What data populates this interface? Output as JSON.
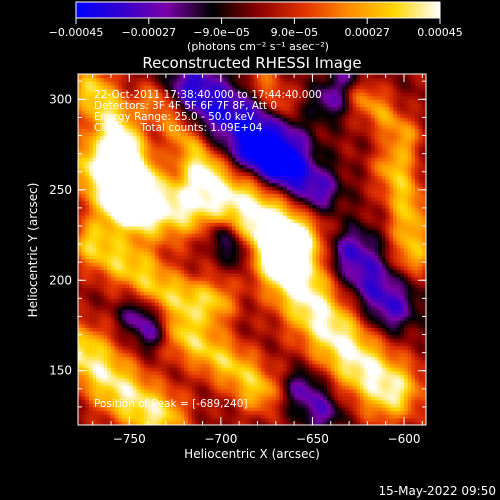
{
  "chart_data": {
    "type": "heatmap",
    "title": "Reconstructed RHESSI Image",
    "xlabel": "Heliocentric X (arcsec)",
    "ylabel": "Heliocentric Y (arcsec)",
    "xlim": [
      -778,
      -588
    ],
    "ylim": [
      120,
      314
    ],
    "x_ticks": [
      -750,
      -700,
      -650,
      -600
    ],
    "x_tick_labels": [
      "−750",
      "−700",
      "−650",
      "−600"
    ],
    "y_ticks": [
      150,
      200,
      250,
      300
    ],
    "y_tick_labels": [
      "150",
      "200",
      "250",
      "300"
    ],
    "colorbar": {
      "range": [
        -0.00045,
        0.00045
      ],
      "ticks": [
        -0.00045,
        -0.00027,
        -9e-05,
        9e-05,
        0.00027,
        0.00045
      ],
      "tick_labels": [
        "−0.00045",
        "−0.00027",
        "−9.0e−05",
        "9.0e−05",
        "0.00027",
        "0.00045"
      ],
      "unit_label": "(photons cm⁻² s⁻¹ asec⁻²)",
      "colors": [
        "#0000ff",
        "#3300cc",
        "#7a00a8",
        "#000000",
        "#8a0000",
        "#e03000",
        "#ff8c00",
        "#ffd700",
        "#ffffff"
      ]
    },
    "annotations": [
      "22-Oct-2011 17:38:40.000 to 17:44:40.000",
      "Detectors: 3F 4F 5F 6F 7F 8F, Att 0",
      "Energy Range: 25.0 - 50.0 keV",
      "Clean     Total counts: 1.09E+04"
    ],
    "peak_label": "Position of Peak = [-689,240]",
    "peak": [
      -689,
      240
    ],
    "grid": false,
    "ridges": [
      {
        "points": [
          [
            -770,
            305
          ],
          [
            -760,
            292
          ],
          [
            -752,
            275
          ],
          [
            -748,
            258
          ],
          [
            -752,
            242
          ]
        ],
        "width": 9,
        "amp": 0.8
      },
      {
        "points": [
          [
            -765,
            262
          ],
          [
            -752,
            250
          ],
          [
            -738,
            240
          ],
          [
            -722,
            242
          ],
          [
            -705,
            246
          ],
          [
            -690,
            244
          ],
          [
            -676,
            235
          ],
          [
            -665,
            222
          ]
        ],
        "width": 13,
        "amp": 1.0
      },
      {
        "points": [
          [
            -770,
            220
          ],
          [
            -758,
            212
          ],
          [
            -745,
            205
          ],
          [
            -732,
            195
          ],
          [
            -718,
            190
          ],
          [
            -705,
            188
          ]
        ],
        "width": 9,
        "amp": 0.75
      },
      {
        "points": [
          [
            -775,
            160
          ],
          [
            -765,
            150
          ],
          [
            -755,
            140
          ],
          [
            -745,
            132
          ],
          [
            -735,
            125
          ]
        ],
        "width": 11,
        "amp": 0.9
      },
      {
        "points": [
          [
            -735,
            300
          ],
          [
            -725,
            288
          ],
          [
            -717,
            275
          ],
          [
            -710,
            262
          ]
        ],
        "width": 7,
        "amp": 0.65
      },
      {
        "points": [
          [
            -665,
            215
          ],
          [
            -658,
            198
          ],
          [
            -648,
            183
          ],
          [
            -636,
            168
          ],
          [
            -623,
            153
          ],
          [
            -608,
            140
          ]
        ],
        "width": 12,
        "amp": 1.0
      },
      {
        "points": [
          [
            -605,
            262
          ],
          [
            -598,
            240
          ],
          [
            -595,
            215
          ]
        ],
        "width": 8,
        "amp": 0.7
      },
      {
        "points": [
          [
            -625,
            305
          ],
          [
            -612,
            292
          ],
          [
            -600,
            280
          ]
        ],
        "width": 7,
        "amp": 0.55
      },
      {
        "points": [
          [
            -720,
            170
          ],
          [
            -705,
            160
          ],
          [
            -690,
            150
          ],
          [
            -680,
            140
          ]
        ],
        "width": 9,
        "amp": 0.75
      },
      {
        "points": [
          [
            -678,
            310
          ],
          [
            -668,
            298
          ]
        ],
        "width": 6,
        "amp": 0.5
      }
    ],
    "troughs": [
      {
        "points": [
          [
            -715,
            305
          ],
          [
            -700,
            295
          ],
          [
            -685,
            285
          ],
          [
            -668,
            272
          ]
        ],
        "width": 12,
        "amp": -0.85
      },
      {
        "points": [
          [
            -680,
            270
          ],
          [
            -662,
            258
          ],
          [
            -648,
            250
          ]
        ],
        "width": 9,
        "amp": -0.75
      },
      {
        "points": [
          [
            -745,
            180
          ],
          [
            -738,
            172
          ]
        ],
        "width": 7,
        "amp": -0.6
      },
      {
        "points": [
          [
            -628,
            215
          ],
          [
            -618,
            200
          ],
          [
            -608,
            186
          ]
        ],
        "width": 10,
        "amp": -0.75
      },
      {
        "points": [
          [
            -655,
            140
          ],
          [
            -645,
            128
          ]
        ],
        "width": 8,
        "amp": -0.6
      },
      {
        "points": [
          [
            -700,
            225
          ],
          [
            -690,
            215
          ]
        ],
        "width": 6,
        "amp": -0.55
      },
      {
        "points": [
          [
            -630,
            312
          ],
          [
            -640,
            300
          ]
        ],
        "width": 7,
        "amp": -0.6
      }
    ]
  },
  "footer": {
    "timestamp": "15-May-2022 09:50"
  }
}
